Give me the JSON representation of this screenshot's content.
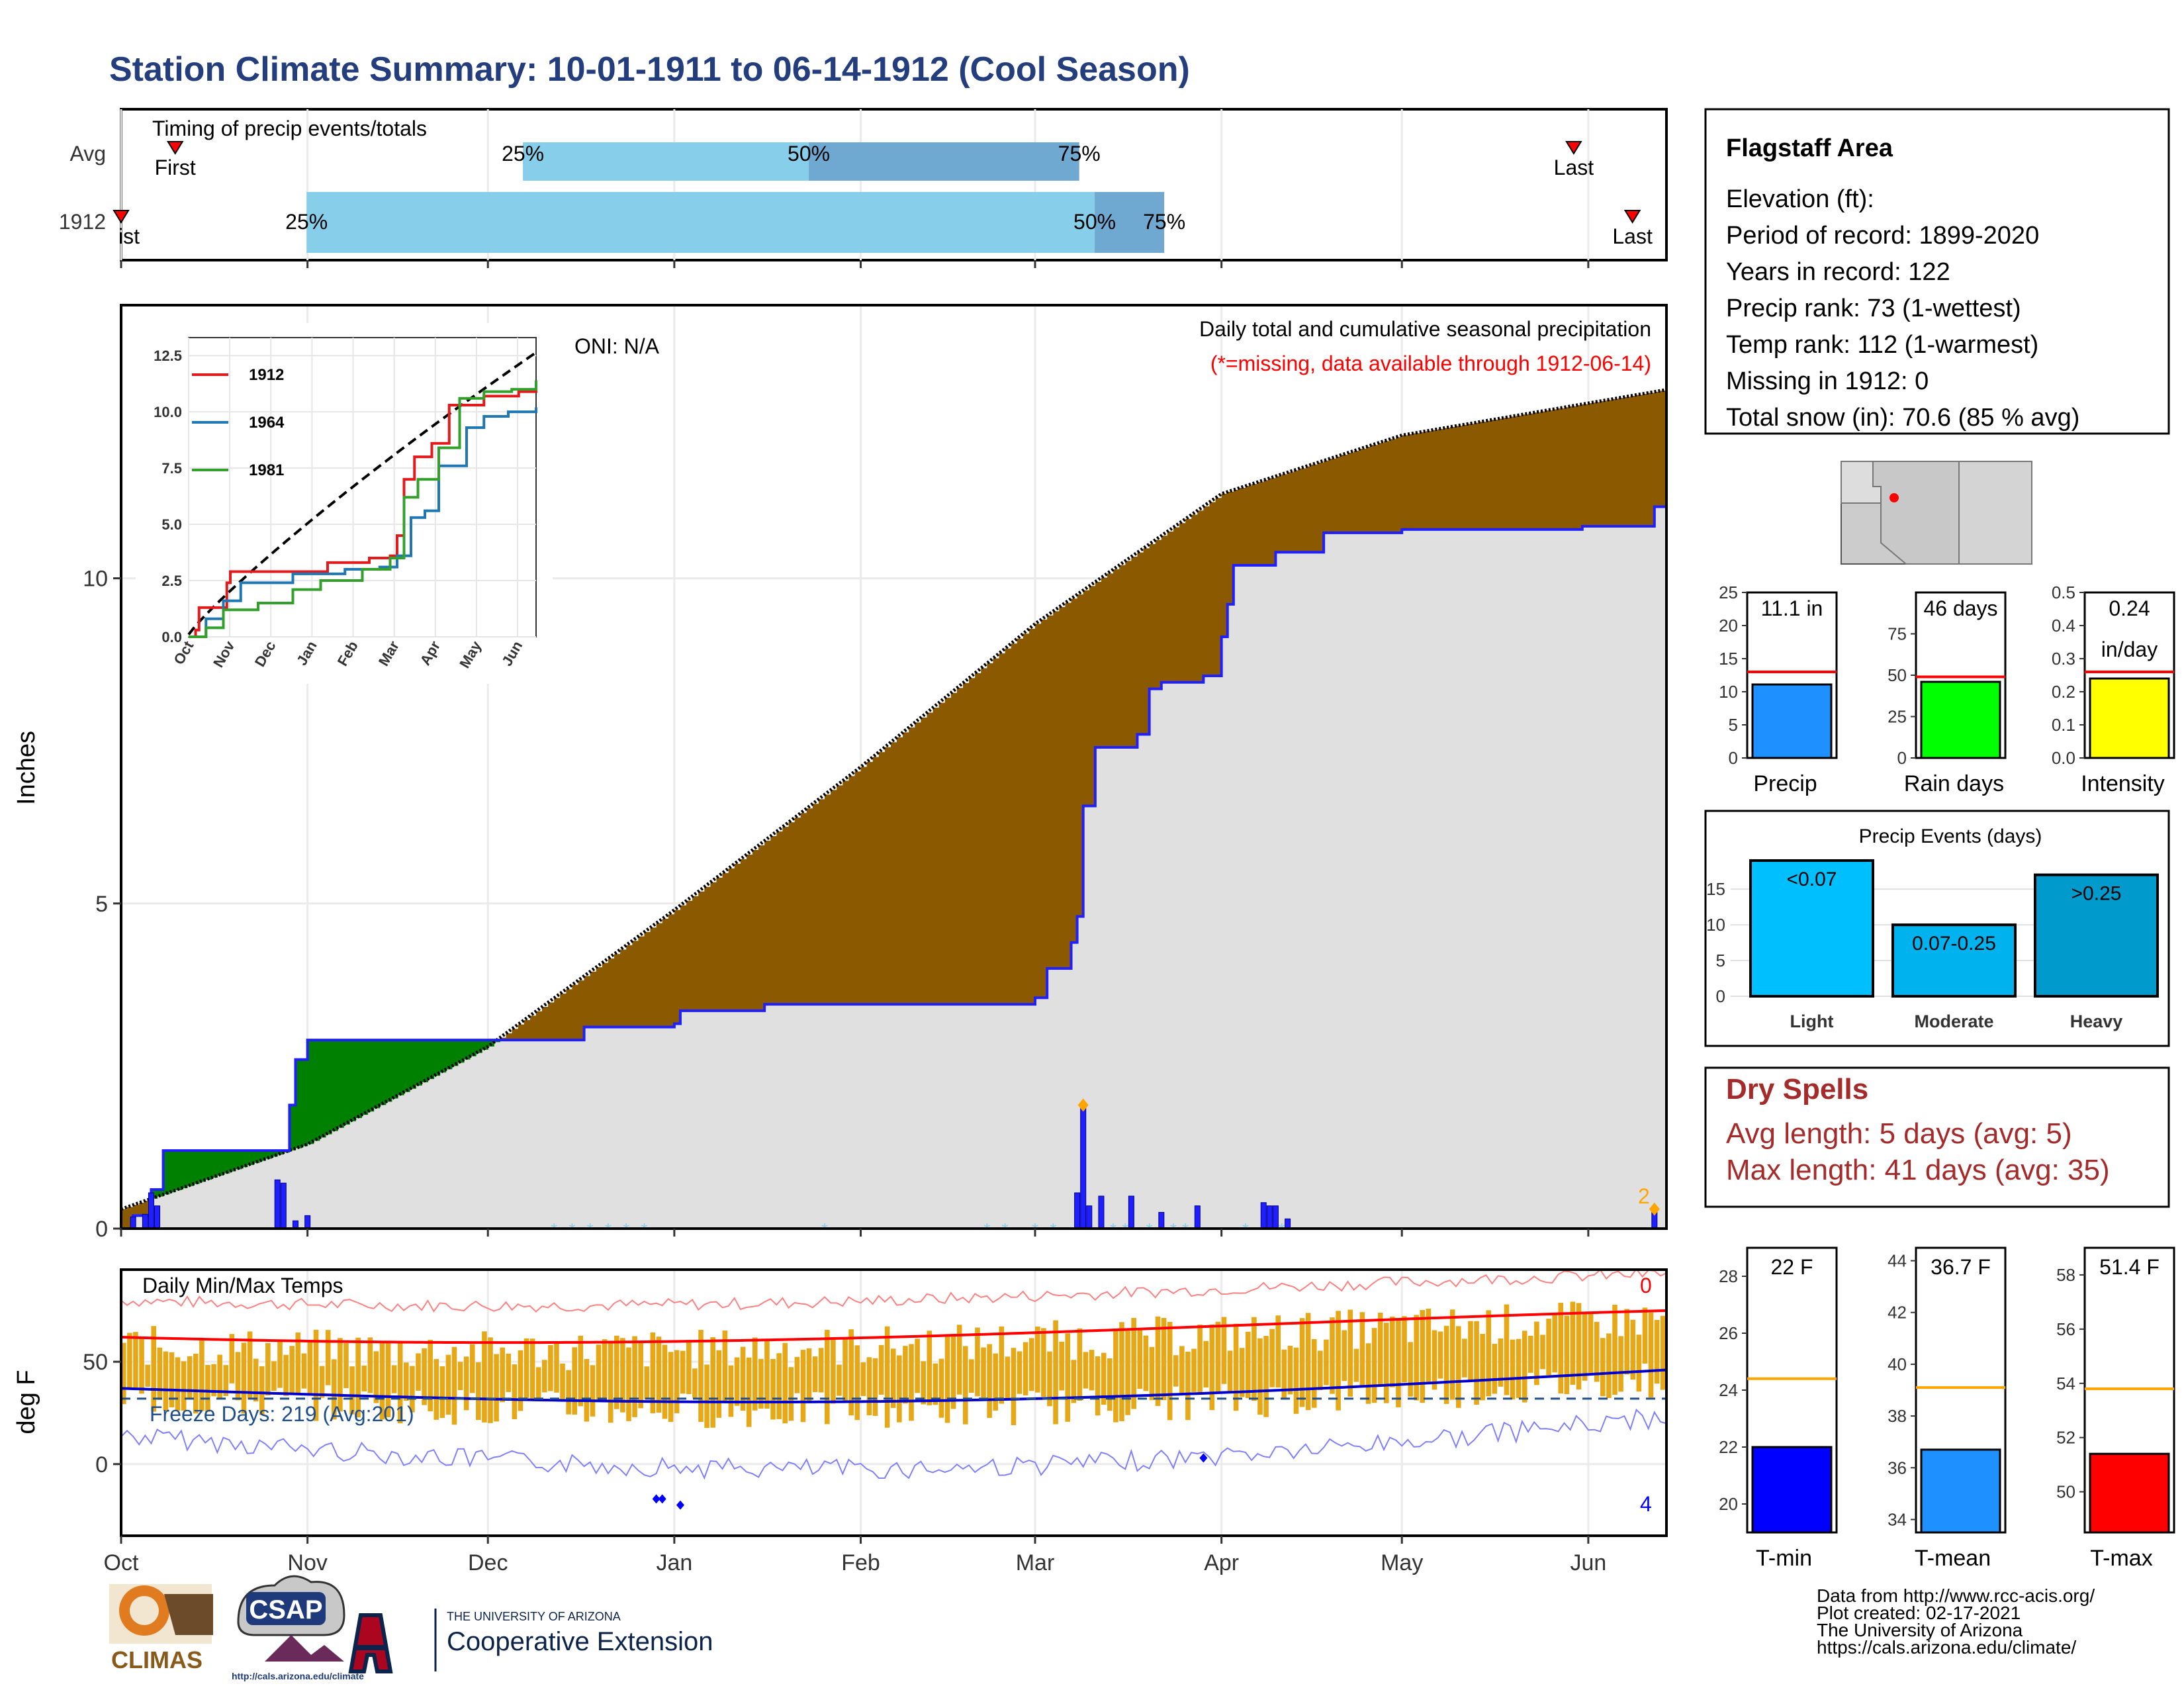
{
  "title": "Station Climate Summary: 10-01-1911 to 06-14-1912 (Cool Season)",
  "colors": {
    "title": "#233d7d",
    "light_blue": "#87ceeb",
    "mid_blue": "#6fa8d0",
    "brown": "#8b5a00",
    "green": "#008000",
    "grey_fill": "#e0e0e0",
    "precip_blue": "#1f1fff",
    "dry_red": "#a52a2a",
    "tmax_red": "#ff0000",
    "tmin_blue": "#0000ff",
    "bar_orange": "#e6a817"
  },
  "timing": {
    "label": "Timing of precip events/totals",
    "rows": [
      {
        "name": "Avg",
        "first_label": "First",
        "last_label": "Last",
        "first": 0.035,
        "last": 0.94,
        "q25_label": "25%",
        "q50_label": "50%",
        "q75_label": "75%",
        "q25": 0.26,
        "q50": 0.445,
        "q75": 0.62
      },
      {
        "name": "1912",
        "first_label": "ist",
        "last_label": "Last",
        "first": 0.0,
        "last": 0.978,
        "q25_label": "25%",
        "q50_label": "50%",
        "q75_label": "75%",
        "q25": 0.12,
        "q50": 0.63,
        "q75": 0.675
      }
    ]
  },
  "main_panel": {
    "ylabel": "Inches",
    "yticks": [
      0,
      5,
      10
    ],
    "oni": "ONI: N/A",
    "legend_line1": "Daily total and cumulative seasonal precipitation",
    "legend_line2": "(*=missing, data available through 1912-06-14)",
    "right_annotation": "2"
  },
  "inset": {
    "yticks": [
      "0.0",
      "2.5",
      "5.0",
      "7.5",
      "10.0",
      "12.5"
    ],
    "xticks": [
      "Oct",
      "Nov",
      "Dec",
      "Jan",
      "Feb",
      "Mar",
      "Apr",
      "May",
      "Jun"
    ],
    "series": [
      {
        "name": "1912",
        "color": "#e31a1c"
      },
      {
        "name": "1964",
        "color": "#1f78b4"
      },
      {
        "name": "1981",
        "color": "#33a02c"
      }
    ]
  },
  "temp_panel": {
    "ylabel": "deg F",
    "yticks": [
      0,
      50
    ],
    "label": "Daily Min/Max Temps",
    "freeze_label": "Freeze Days: 219 (Avg:201)",
    "top_right": "0",
    "bottom_right": "4"
  },
  "months": [
    "Oct",
    "Nov",
    "Dec",
    "Jan",
    "Feb",
    "Mar",
    "Apr",
    "May",
    "Jun"
  ],
  "info": {
    "station": "Flagstaff Area",
    "lines": [
      "Elevation (ft):",
      "Period of record: 1899-2020",
      "Years in record: 122",
      "Precip rank: 73 (1-wettest)",
      "Temp rank: 112 (1-warmest)",
      "Missing in 1912: 0",
      "Total snow (in): 70.6 (85 % avg)"
    ]
  },
  "mini_bars": [
    {
      "name": "Precip",
      "label_top": "11.1 in",
      "value": 11.1,
      "avg": 13,
      "max": 25,
      "ticks": [
        "0",
        "5",
        "10",
        "15",
        "20",
        "25"
      ],
      "color": "#1e90ff"
    },
    {
      "name": "Rain days",
      "label_top": "46 days",
      "value": 46,
      "avg": 49,
      "max": 100,
      "ticks": [
        "0",
        "25",
        "50",
        "75"
      ],
      "color": "#00ff00"
    },
    {
      "name": "Intensity",
      "label_top": "0.24",
      "label_top2": "in/day",
      "value": 0.24,
      "avg": 0.26,
      "max": 0.5,
      "ticks": [
        "0.0",
        "0.1",
        "0.2",
        "0.3",
        "0.4",
        "0.5"
      ],
      "color": "#ffff00"
    }
  ],
  "precip_events": {
    "title": "Precip Events (days)",
    "yticks": [
      "0",
      "5",
      "10",
      "15"
    ],
    "bars": [
      {
        "name": "Light",
        "label": "<0.07",
        "value": 19,
        "color": "#00bfff"
      },
      {
        "name": "Moderate",
        "label": "0.07-0.25",
        "value": 10,
        "color": "#00b2ee"
      },
      {
        "name": "Heavy",
        "label": ">0.25",
        "value": 17,
        "color": "#009acd"
      }
    ]
  },
  "dry_spells": {
    "title": "Dry Spells",
    "avg_line": "Avg length: 5 days (avg: 5)",
    "max_line": "Max length: 41 days (avg: 35)"
  },
  "temp_bars": [
    {
      "name": "T-min",
      "label_top": "22 F",
      "value": 22,
      "avg": 24.4,
      "min": 19,
      "max": 29,
      "ticks": [
        "20",
        "22",
        "24",
        "26",
        "28"
      ],
      "color": "#0000ff"
    },
    {
      "name": "T-mean",
      "label_top": "36.7 F",
      "value": 36.7,
      "avg": 39.1,
      "min": 33.5,
      "max": 44.5,
      "ticks": [
        "34",
        "36",
        "38",
        "40",
        "42",
        "44"
      ],
      "color": "#1e90ff"
    },
    {
      "name": "T-max",
      "label_top": "51.4 F",
      "value": 51.4,
      "avg": 53.8,
      "min": 48.5,
      "max": 59,
      "ticks": [
        "50",
        "52",
        "54",
        "56",
        "58"
      ],
      "color": "#ff0000"
    }
  ],
  "footer": {
    "logo1": "CLIMAS",
    "logo2": "CSAP",
    "logo2_url": "http://cals.arizona.edu/climate",
    "ua_small": "THE UNIVERSITY OF ARIZONA",
    "ua_big": "Cooperative Extension",
    "credits": [
      "Data from http://www.rcc-acis.org/",
      "Plot created: 02-17-2021",
      "The University of Arizona",
      "https://cals.arizona.edu/climate/"
    ]
  },
  "chart_data": {
    "type": "area",
    "title": "Daily total and cumulative seasonal precipitation",
    "ylabel": "Inches",
    "ylim": [
      0,
      14.2
    ],
    "x_range": [
      "1911-10-01",
      "1912-06-14"
    ],
    "series": [
      {
        "name": "1912",
        "points": [
          [
            "1911-10-01",
            0
          ],
          [
            "1911-10-03",
            0.2
          ],
          [
            "1911-10-06",
            0.6
          ],
          [
            "1911-10-08",
            1.2
          ],
          [
            "1911-10-15",
            1.2
          ],
          [
            "1911-10-28",
            1.2
          ],
          [
            "1911-10-29",
            1.9
          ],
          [
            "1911-10-30",
            2.6
          ],
          [
            "1911-11-01",
            2.7
          ],
          [
            "1911-11-01",
            2.9
          ],
          [
            "1911-11-30",
            2.9
          ],
          [
            "1911-12-16",
            2.9
          ],
          [
            "1911-12-17",
            3.1
          ],
          [
            "1912-01-01",
            3.15
          ],
          [
            "1912-01-02",
            3.35
          ],
          [
            "1912-01-16",
            3.45
          ],
          [
            "1912-02-28",
            3.45
          ],
          [
            "1912-03-01",
            3.55
          ],
          [
            "1912-03-03",
            4.0
          ],
          [
            "1912-03-07",
            4.4
          ],
          [
            "1912-03-08",
            4.8
          ],
          [
            "1912-03-09",
            6.5
          ],
          [
            "1912-03-11",
            7.4
          ],
          [
            "1912-03-18",
            7.6
          ],
          [
            "1912-03-20",
            8.3
          ],
          [
            "1912-03-22",
            8.4
          ],
          [
            "1912-03-29",
            8.5
          ],
          [
            "1912-04-01",
            9.1
          ],
          [
            "1912-04-02",
            9.6
          ],
          [
            "1912-04-03",
            10.2
          ],
          [
            "1912-04-10",
            10.4
          ],
          [
            "1912-04-18",
            10.7
          ],
          [
            "1912-05-01",
            10.75
          ],
          [
            "1912-05-31",
            10.8
          ],
          [
            "1912-06-12",
            11.1
          ],
          [
            "1912-06-14",
            11.1
          ]
        ]
      },
      {
        "name": "Average",
        "points": [
          [
            "1911-10-01",
            0.3
          ],
          [
            "1911-11-01",
            1.3
          ],
          [
            "1911-12-01",
            2.8
          ],
          [
            "1912-01-01",
            4.9
          ],
          [
            "1912-02-01",
            7.1
          ],
          [
            "1912-03-01",
            9.3
          ],
          [
            "1912-04-01",
            11.3
          ],
          [
            "1912-05-01",
            12.2
          ],
          [
            "1912-06-14",
            12.9
          ]
        ]
      }
    ],
    "daily_precip": [
      [
        "1911-10-03",
        0.18
      ],
      [
        "1911-10-05",
        0.22
      ],
      [
        "1911-10-06",
        0.55
      ],
      [
        "1911-10-07",
        0.35
      ],
      [
        "1911-10-27",
        0.75
      ],
      [
        "1911-10-28",
        0.7
      ],
      [
        "1911-10-30",
        0.12
      ],
      [
        "1911-11-01",
        0.2
      ],
      [
        "1912-03-08",
        0.55
      ],
      [
        "1912-03-09",
        1.9
      ],
      [
        "1912-03-10",
        0.35
      ],
      [
        "1912-03-12",
        0.5
      ],
      [
        "1912-03-17",
        0.5
      ],
      [
        "1912-03-22",
        0.25
      ],
      [
        "1912-03-28",
        0.35
      ],
      [
        "1912-04-08",
        0.4
      ],
      [
        "1912-04-09",
        0.35
      ],
      [
        "1912-04-10",
        0.35
      ],
      [
        "1912-04-12",
        0.15
      ],
      [
        "1912-06-12",
        0.3
      ]
    ],
    "temps": {
      "ylabel": "deg F",
      "ylim": [
        -35,
        95
      ],
      "avg_tmax_start": 62,
      "avg_tmax_end": 75,
      "avg_tmin_start": 37,
      "avg_tmin_end": 46,
      "freeze_line": 32
    }
  }
}
